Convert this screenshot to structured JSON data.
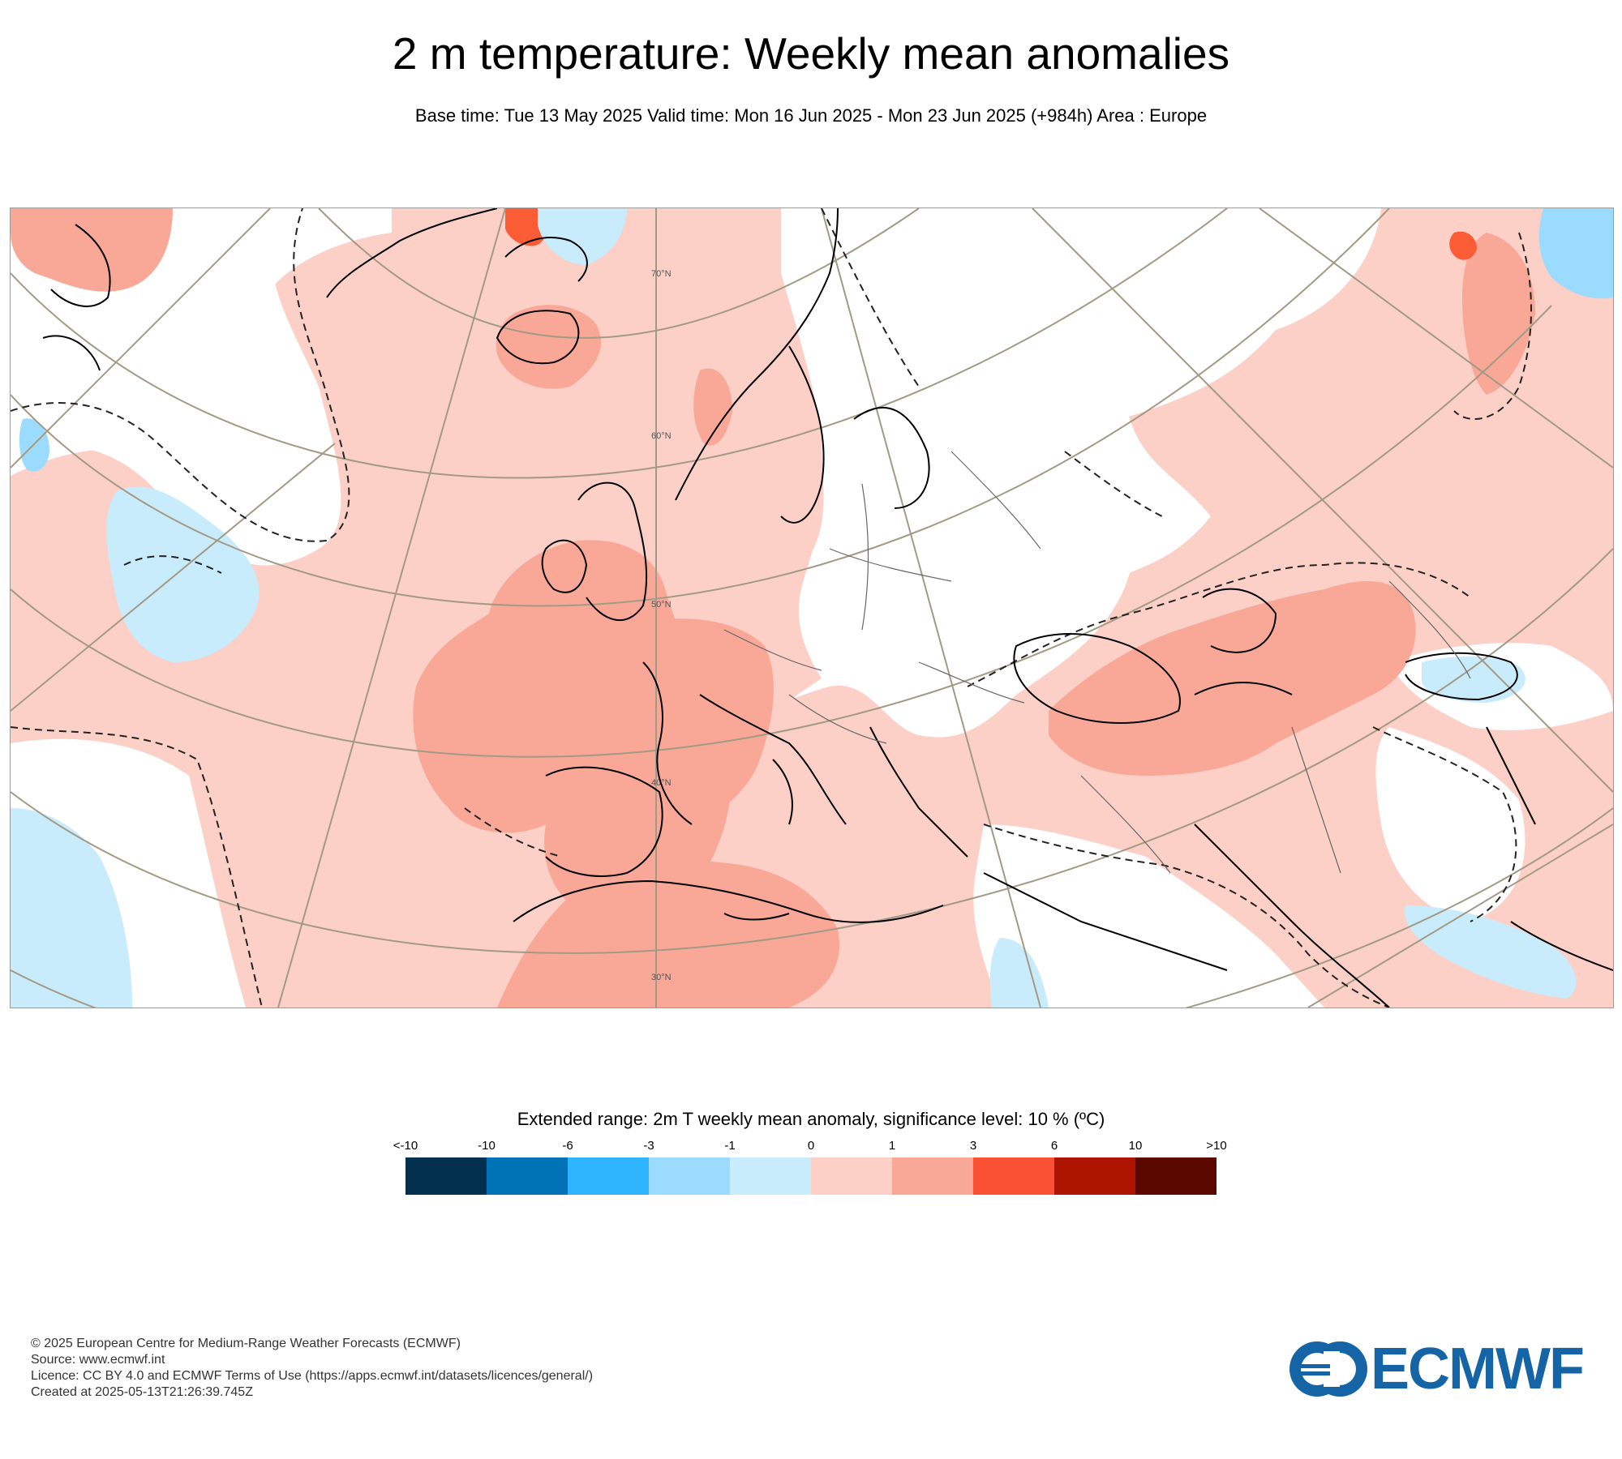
{
  "header": {
    "title": "2 m temperature: Weekly mean anomalies",
    "subtitle": "Base time: Tue 13 May 2025 Valid time: Mon 16 Jun 2025 - Mon 23 Jun 2025 (+984h) Area : Europe"
  },
  "map": {
    "region": "Europe",
    "latitude_labels": [
      "70°N",
      "60°N",
      "50°N",
      "40°N",
      "30°N"
    ],
    "anomaly_colors": {
      "strong_warm": "#fa5c36",
      "moderate_warm": "#f9a898",
      "weak_warm": "#fccfc7",
      "neutral": "#ffffff",
      "weak_cool": "#c9ecfd",
      "moderate_cool": "#9bdcfe"
    },
    "coastline_color": "#000000",
    "graticule_color": "#a39a85"
  },
  "legend": {
    "title": "Extended range: 2m T weekly mean anomaly, significance level: 10 % (ºC)",
    "ticks": [
      "<-10",
      "-10",
      "-6",
      "-3",
      "-1",
      "0",
      "1",
      "3",
      "6",
      "10",
      ">10"
    ],
    "colors": [
      "#04304f",
      "#0073b7",
      "#2fb5fd",
      "#9bdcfe",
      "#c9ecfd",
      "#fccfc7",
      "#f9a898",
      "#fa5033",
      "#ad1400",
      "#5a0800"
    ]
  },
  "footer": {
    "copyright": "© 2025 European Centre for Medium-Range Weather Forecasts (ECMWF)",
    "source": "Source: www.ecmwf.int",
    "licence": "Licence: CC BY 4.0 and ECMWF Terms of Use (https://apps.ecmwf.int/datasets/licences/general/)",
    "created": "Created at 2025-05-13T21:26:39.745Z"
  },
  "logo": {
    "text": "ECMWF",
    "color": "#1565a6"
  }
}
